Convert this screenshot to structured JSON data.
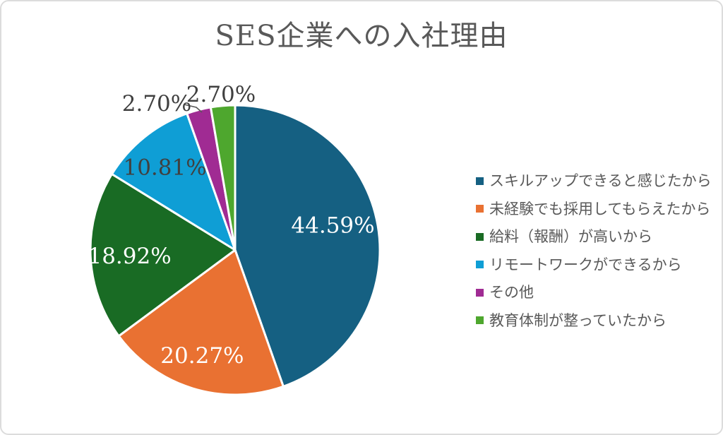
{
  "chart_data": {
    "type": "pie",
    "title": "SES企業への入社理由",
    "legend_position": "right",
    "start_angle_deg": 0,
    "direction": "clockwise",
    "series": [
      {
        "label": "スキルアップできると感じたから",
        "value": 44.59,
        "display": "44.59%",
        "color": "#156082",
        "label_color": "#FFFFFF",
        "label_placement": "inside"
      },
      {
        "label": "未経験でも採用してもらえたから",
        "value": 20.27,
        "display": "20.27%",
        "color": "#E97132",
        "label_color": "#FFFFFF",
        "label_placement": "inside"
      },
      {
        "label": "給料（報酬）が高いから",
        "value": 18.92,
        "display": "18.92%",
        "color": "#196B24",
        "label_color": "#FFFFFF",
        "label_placement": "inside"
      },
      {
        "label": "リモートワークができるから",
        "value": 10.81,
        "display": "10.81%",
        "color": "#0F9ED5",
        "label_color": "#404040",
        "label_placement": "inside"
      },
      {
        "label": "その他",
        "value": 2.7,
        "display": "2.70%",
        "color": "#A02B93",
        "label_color": "#404040",
        "label_placement": "outside"
      },
      {
        "label": "教育体制が整っていたから",
        "value": 2.7,
        "display": "2.70%",
        "color": "#4EA72E",
        "label_color": "#404040",
        "label_placement": "outside"
      }
    ]
  },
  "colors": {
    "title_text": "#595959",
    "legend_text": "#595959",
    "data_label_dark": "#404040",
    "data_label_light": "#FFFFFF",
    "leader_line": "#595959",
    "slice_border": "#FFFFFF",
    "canvas_border": "#dcdcdc",
    "background": "#FFFFFF"
  }
}
